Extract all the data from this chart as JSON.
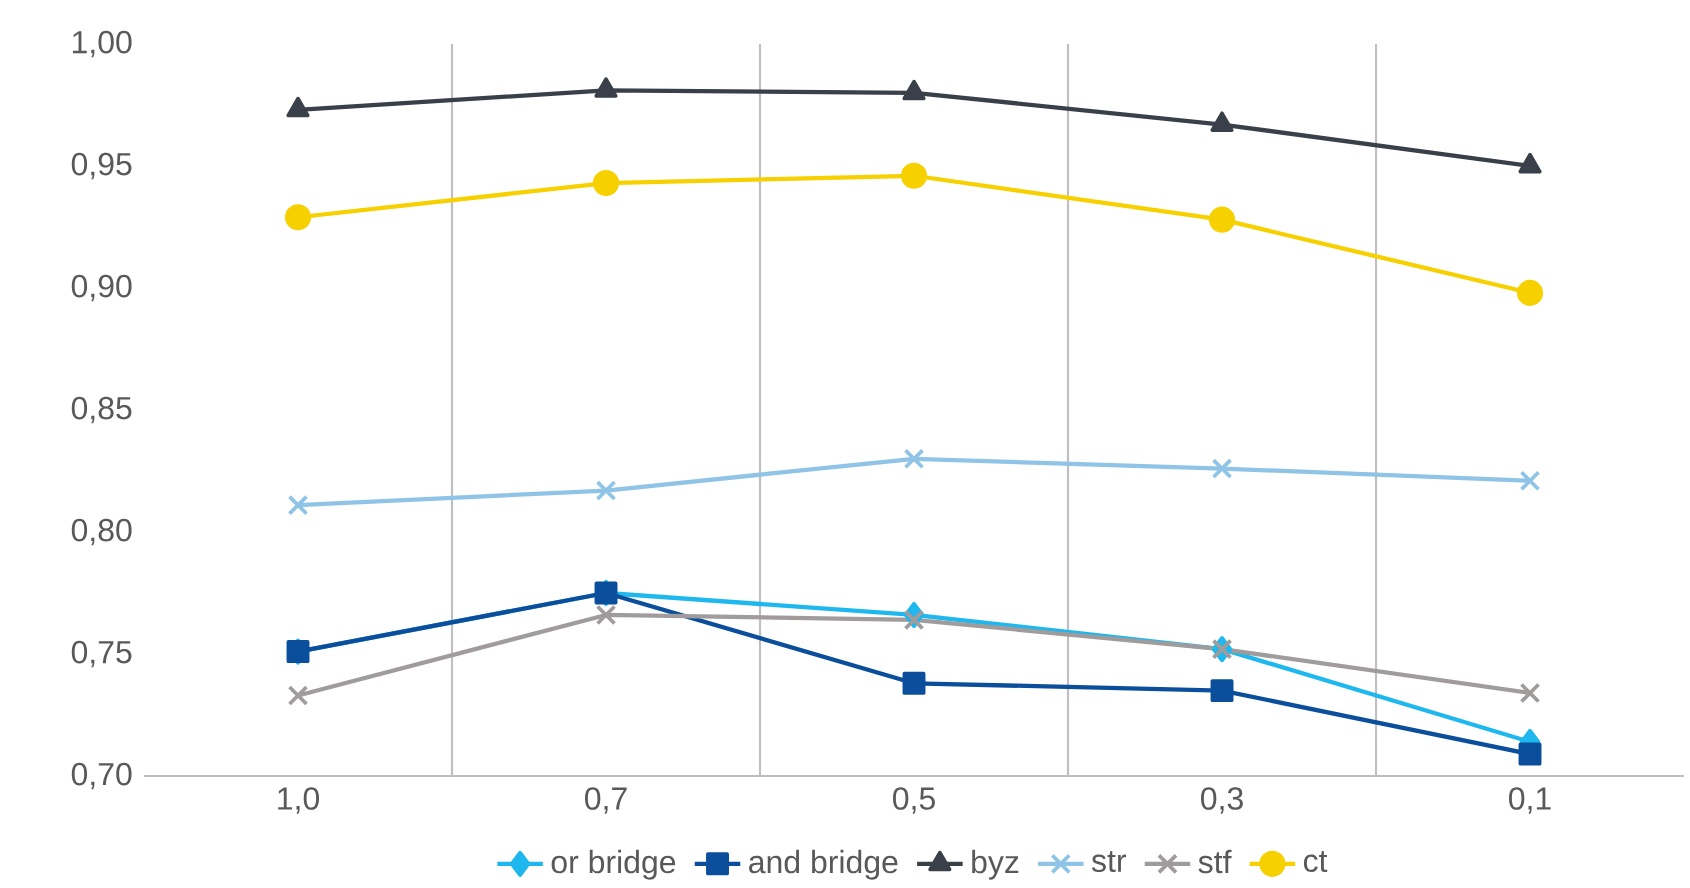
{
  "chart_data": {
    "type": "line",
    "categories": [
      "1,0",
      "0,7",
      "0,5",
      "0,3",
      "0,1"
    ],
    "series": [
      {
        "name": "or bridge",
        "color": "#1fb8ee",
        "marker": "diamond",
        "values": [
          0.751,
          0.775,
          0.766,
          0.752,
          0.714
        ]
      },
      {
        "name": "and bridge",
        "color": "#0b4f9c",
        "marker": "square",
        "values": [
          0.751,
          0.775,
          0.738,
          0.735,
          0.709
        ]
      },
      {
        "name": "byz",
        "color": "#3a4049",
        "marker": "triangle",
        "values": [
          0.973,
          0.981,
          0.98,
          0.967,
          0.95
        ]
      },
      {
        "name": "str",
        "color": "#8fc4e6",
        "marker": "cross",
        "values": [
          0.811,
          0.817,
          0.83,
          0.826,
          0.821
        ]
      },
      {
        "name": "stf",
        "color": "#a09c9c",
        "marker": "cross",
        "values": [
          0.733,
          0.766,
          0.764,
          0.752,
          0.734
        ]
      },
      {
        "name": "ct",
        "color": "#f7d000",
        "marker": "circle",
        "values": [
          0.929,
          0.943,
          0.946,
          0.928,
          0.898
        ]
      }
    ],
    "ylim": [
      0.7,
      1.0
    ],
    "yticks": [
      {
        "value": 0.7,
        "label": "0,70"
      },
      {
        "value": 0.75,
        "label": "0,75"
      },
      {
        "value": 0.8,
        "label": "0,80"
      },
      {
        "value": 0.85,
        "label": "0,85"
      },
      {
        "value": 0.9,
        "label": "0,90"
      },
      {
        "value": 0.95,
        "label": "0,95"
      },
      {
        "value": 1.0,
        "label": "1,00"
      }
    ],
    "grid": "x",
    "legend": "bottom",
    "line_style": "solid"
  }
}
